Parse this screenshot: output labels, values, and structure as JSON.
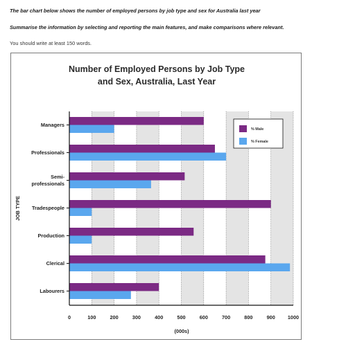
{
  "instructions": {
    "line1": "The bar chart below shows the number of employed persons by job type and sex for Australia last year",
    "line2": "Summarise the information by selecting and reporting the main features, and make comparisons where relevant.",
    "line3": "You should write at least 150 words."
  },
  "colors": {
    "male": "#7b2a84",
    "female": "#5aa7ee",
    "band": "#e4e4e4"
  },
  "chart_data": {
    "type": "bar",
    "orientation": "horizontal",
    "title": "Number of Employed Persons by Job Type and Sex, Australia, Last Year",
    "title_lines": [
      "Number of Employed Persons by Job Type",
      "and Sex, Australia, Last Year"
    ],
    "xlabel": "(000s)",
    "ylabel": "JOB TYPE",
    "xlim": [
      0,
      1000
    ],
    "xticks": [
      0,
      100,
      200,
      300,
      400,
      500,
      600,
      700,
      800,
      900,
      1000
    ],
    "categories": [
      {
        "lines": [
          "Managers"
        ]
      },
      {
        "lines": [
          "Professionals"
        ]
      },
      {
        "lines": [
          "Semi-",
          "professionals"
        ]
      },
      {
        "lines": [
          "Tradespeople"
        ]
      },
      {
        "lines": [
          "Production"
        ]
      },
      {
        "lines": [
          "Clerical"
        ]
      },
      {
        "lines": [
          "Labourers"
        ]
      }
    ],
    "series": [
      {
        "name": "% Male",
        "values": [
          600,
          650,
          515,
          900,
          555,
          875,
          400
        ]
      },
      {
        "name": "% Female",
        "values": [
          200,
          700,
          365,
          100,
          100,
          985,
          275
        ]
      }
    ],
    "grid": "vertical dotted",
    "legend_position": "top-right"
  }
}
